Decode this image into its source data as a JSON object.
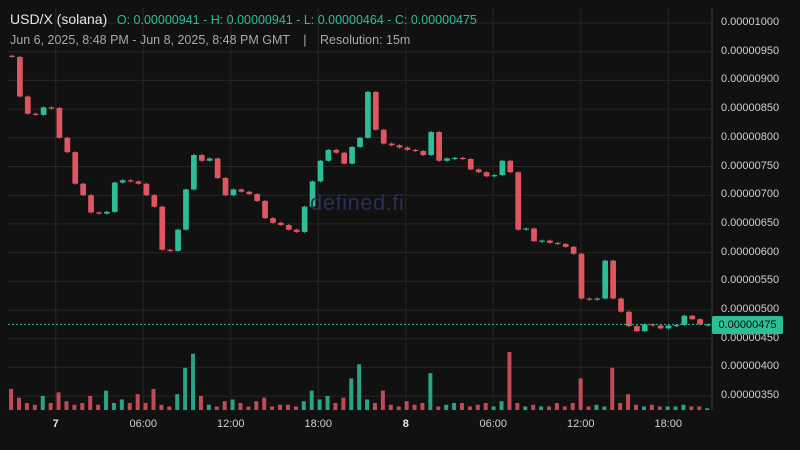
{
  "header": {
    "title": "USD/X (solana)",
    "ohlc": "O: 0.00000941 - H: 0.00000941 - L: 0.00000464 - C: 0.00000475",
    "range": "Jun 6, 2025, 8:48 PM - Jun 8, 2025, 8:48 PM GMT",
    "separator": "|",
    "resolution": "Resolution: 15m"
  },
  "watermark": "defined.fi",
  "last_price_label": "0.00000475",
  "colors": {
    "up": "#2dbd99",
    "down": "#e05660",
    "grid": "#262626",
    "background": "#111111"
  },
  "chart_data": {
    "type": "candlestick",
    "y_axis": {
      "min": 3.3e-06,
      "max": 1.01e-05,
      "ticks": [
        "0.00001000",
        "0.00000950",
        "0.00000900",
        "0.00000850",
        "0.00000800",
        "0.00000750",
        "0.00000700",
        "0.00000650",
        "0.00000600",
        "0.00000550",
        "0.00000500",
        "0.00000450",
        "0.00000400",
        "0.00000350"
      ]
    },
    "x_axis": {
      "ticks": [
        {
          "label": "7",
          "pos": 0.0678,
          "bold": true
        },
        {
          "label": "06:00",
          "pos": 0.1921,
          "bold": false
        },
        {
          "label": "12:00",
          "pos": 0.3164,
          "bold": false
        },
        {
          "label": "18:00",
          "pos": 0.4407,
          "bold": false
        },
        {
          "label": "8",
          "pos": 0.565,
          "bold": true
        },
        {
          "label": "06:00",
          "pos": 0.6893,
          "bold": false
        },
        {
          "label": "12:00",
          "pos": 0.8136,
          "bold": false
        },
        {
          "label": "18:00",
          "pos": 0.9379,
          "bold": false
        }
      ]
    },
    "last_price": 4.75e-06,
    "closes": [
      9.41e-06,
      8.72e-06,
      8.42e-06,
      8.4e-06,
      8.53e-06,
      8.52e-06,
      8e-06,
      7.75e-06,
      7.2e-06,
      7e-06,
      6.7e-06,
      6.68e-06,
      6.71e-06,
      7.22e-06,
      7.26e-06,
      7.24e-06,
      7.2e-06,
      7e-06,
      6.8e-06,
      6.05e-06,
      6.03e-06,
      6.4e-06,
      7.1e-06,
      7.7e-06,
      7.6e-06,
      7.64e-06,
      7.3e-06,
      7e-06,
      7.1e-06,
      7.06e-06,
      7.02e-06,
      6.9e-06,
      6.6e-06,
      6.52e-06,
      6.48e-06,
      6.4e-06,
      6.36e-06,
      6.8e-06,
      7.24e-06,
      7.6e-06,
      7.79e-06,
      7.74e-06,
      7.55e-06,
      7.84e-06,
      8e-06,
      8.8e-06,
      8.14e-06,
      7.9e-06,
      7.87e-06,
      7.83e-06,
      7.79e-06,
      7.77e-06,
      7.7e-06,
      8.1e-06,
      7.6e-06,
      7.64e-06,
      7.65e-06,
      7.63e-06,
      7.45e-06,
      7.4e-06,
      7.33e-06,
      7.35e-06,
      7.6e-06,
      7.4e-06,
      6.4e-06,
      6.42e-06,
      6.2e-06,
      6.21e-06,
      6.17e-06,
      6.15e-06,
      6.1e-06,
      5.98e-06,
      5.2e-06,
      5.19e-06,
      5.2e-06,
      5.86e-06,
      5.2e-06,
      4.97e-06,
      4.72e-06,
      4.63e-06,
      4.75e-06,
      4.73e-06,
      4.68e-06,
      4.73e-06,
      4.74e-06,
      4.9e-06,
      4.84e-06,
      4.75e-06,
      4.75e-06
    ],
    "volumes": [
      12,
      7,
      4,
      3,
      8,
      4,
      10,
      5,
      3,
      4,
      8,
      3,
      11,
      4,
      6,
      4,
      9,
      4,
      12,
      3,
      2,
      9,
      24,
      32,
      8,
      3,
      2,
      5,
      6,
      4,
      2,
      5,
      7,
      2,
      3,
      3,
      2,
      5,
      11,
      6,
      8,
      4,
      7,
      18,
      26,
      6,
      4,
      11,
      3,
      2,
      5,
      3,
      4,
      21,
      2,
      3,
      4,
      4,
      2,
      3,
      4,
      2,
      5,
      33,
      4,
      2,
      3,
      2,
      2,
      4,
      2,
      4,
      18,
      2,
      3,
      2,
      24,
      4,
      9,
      3,
      2,
      3,
      2,
      2,
      2,
      3,
      2,
      2,
      1
    ]
  }
}
